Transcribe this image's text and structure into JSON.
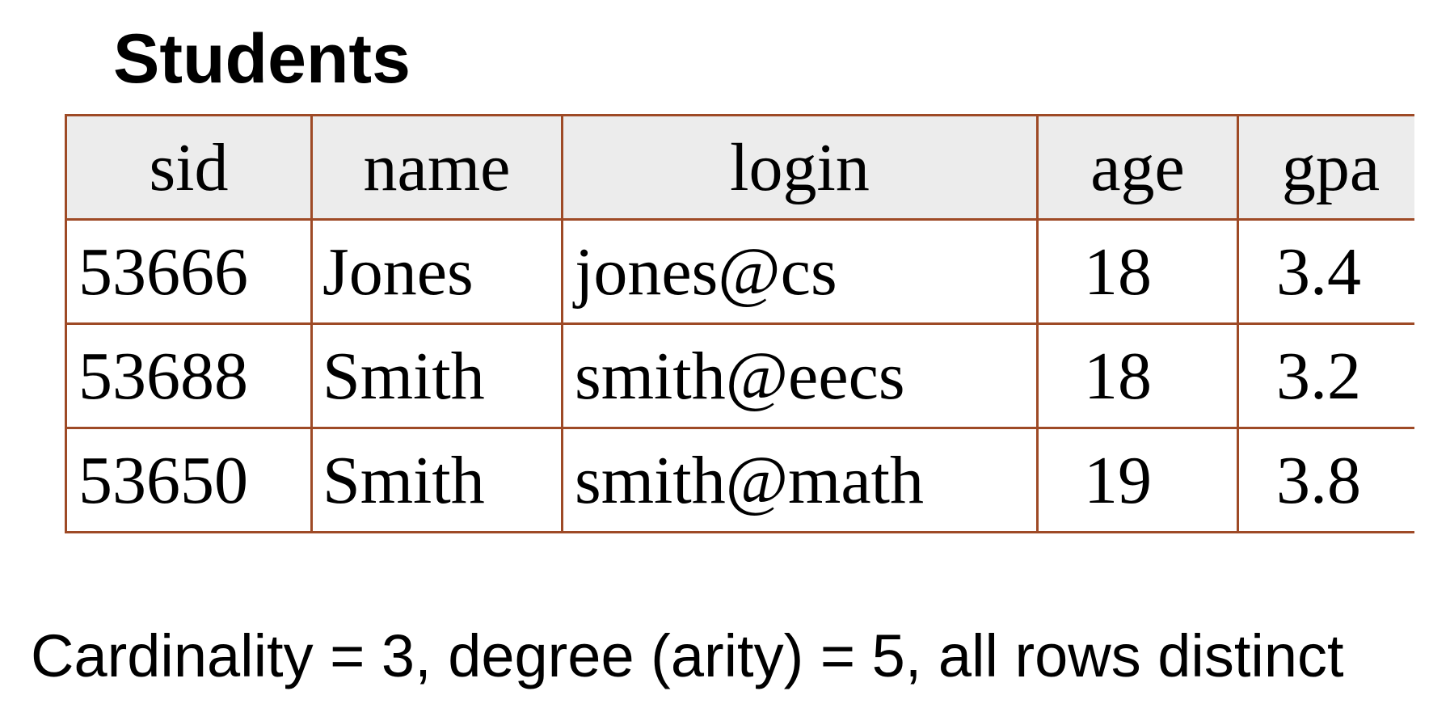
{
  "title": "Students",
  "table": {
    "headers": [
      "sid",
      "name",
      "login",
      "age",
      "gpa"
    ],
    "rows": [
      [
        "53666",
        "Jones",
        "jones@cs",
        "18",
        "3.4"
      ],
      [
        "53688",
        "Smith",
        "smith@eecs",
        "18",
        "3.2"
      ],
      [
        "53650",
        "Smith",
        "smith@math",
        "19",
        "3.8"
      ]
    ]
  },
  "summary": "Cardinality = 3, degree (arity) = 5, all rows distinct",
  "colors": {
    "border": "#9e4a26",
    "header_bg": "#ececec",
    "text": "#000000"
  }
}
